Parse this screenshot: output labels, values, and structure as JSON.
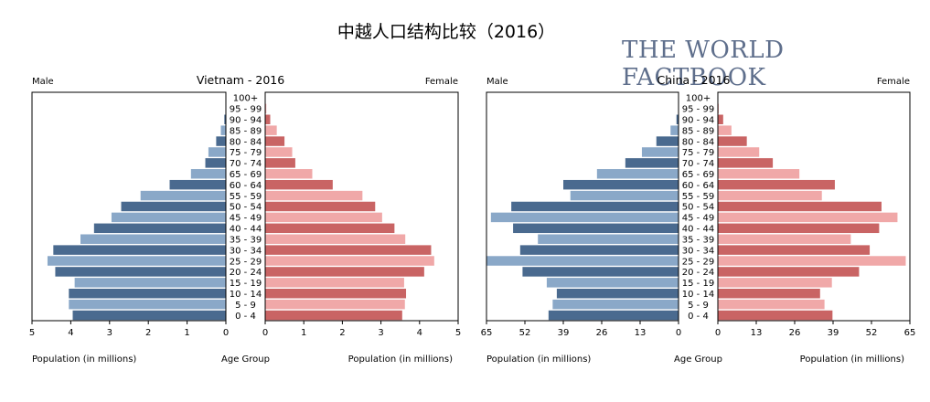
{
  "title": "中越人口结构比较（2016）",
  "watermark": "THE WORLD FACTBOOK",
  "colors": {
    "male_dark": "#4a6a8f",
    "male_light": "#8aa8c8",
    "female_dark": "#c96464",
    "female_light": "#f0a8a8"
  },
  "chart_data": [
    {
      "type": "bar",
      "title": "Vietnam - 2016",
      "left_label": "Male",
      "right_label": "Female",
      "xlabel_left": "Population (in millions)",
      "xlabel_center": "Age Group",
      "xlabel_right": "Population (in millions)",
      "xlim": [
        0,
        5
      ],
      "ticks_left": [
        "5",
        "4",
        "3",
        "2",
        "1",
        "0"
      ],
      "ticks_right": [
        "0",
        "1",
        "2",
        "3",
        "4",
        "5"
      ],
      "categories": [
        "100+",
        "95 - 99",
        "90 - 94",
        "85 - 89",
        "80 - 84",
        "75 - 79",
        "70 - 74",
        "65 - 69",
        "60 - 64",
        "55 - 59",
        "50 - 54",
        "45 - 49",
        "40 - 44",
        "35 - 39",
        "30 - 34",
        "25 - 29",
        "20 - 24",
        "15 - 19",
        "10 - 14",
        "5 - 9",
        "0 - 4"
      ],
      "series": [
        {
          "name": "Male",
          "values": [
            0.003,
            0.01,
            0.04,
            0.13,
            0.25,
            0.45,
            0.53,
            0.9,
            1.45,
            2.2,
            2.7,
            2.95,
            3.4,
            3.75,
            4.45,
            4.6,
            4.4,
            3.9,
            4.05,
            4.05,
            3.95
          ]
        },
        {
          "name": "Female",
          "values": [
            0.007,
            0.03,
            0.13,
            0.3,
            0.5,
            0.7,
            0.78,
            1.22,
            1.75,
            2.52,
            2.85,
            3.03,
            3.35,
            3.63,
            4.3,
            4.38,
            4.12,
            3.6,
            3.65,
            3.62,
            3.55
          ]
        }
      ]
    },
    {
      "type": "bar",
      "title": "China - 2016",
      "left_label": "Male",
      "right_label": "Female",
      "xlabel_left": "Population (in millions)",
      "xlabel_center": "Age Group",
      "xlabel_right": "Population (in millions)",
      "xlim": [
        0,
        65
      ],
      "ticks_left": [
        "65",
        "52",
        "39",
        "26",
        "13",
        "0"
      ],
      "ticks_right": [
        "0",
        "13",
        "26",
        "39",
        "52",
        "65"
      ],
      "categories": [
        "100+",
        "95 - 99",
        "90 - 94",
        "85 - 89",
        "80 - 84",
        "75 - 79",
        "70 - 74",
        "65 - 69",
        "60 - 64",
        "55 - 59",
        "50 - 54",
        "45 - 49",
        "40 - 44",
        "35 - 39",
        "30 - 34",
        "25 - 29",
        "20 - 24",
        "15 - 19",
        "10 - 14",
        "5 - 9",
        "0 - 4"
      ],
      "series": [
        {
          "name": "Male",
          "values": [
            0.02,
            0.1,
            0.7,
            2.7,
            7.5,
            12.4,
            18,
            27.6,
            39,
            36.6,
            56.6,
            63.5,
            56,
            47.6,
            53.6,
            65,
            52.8,
            44.6,
            41.2,
            42.6,
            44
          ]
        },
        {
          "name": "Female",
          "values": [
            0.05,
            0.3,
            1.8,
            4.6,
            9.8,
            14,
            18.6,
            27.6,
            39.6,
            35.2,
            55.4,
            60.8,
            54.6,
            45,
            51.4,
            63.6,
            47.8,
            38.6,
            34.6,
            36.1,
            38.8
          ]
        }
      ]
    }
  ]
}
